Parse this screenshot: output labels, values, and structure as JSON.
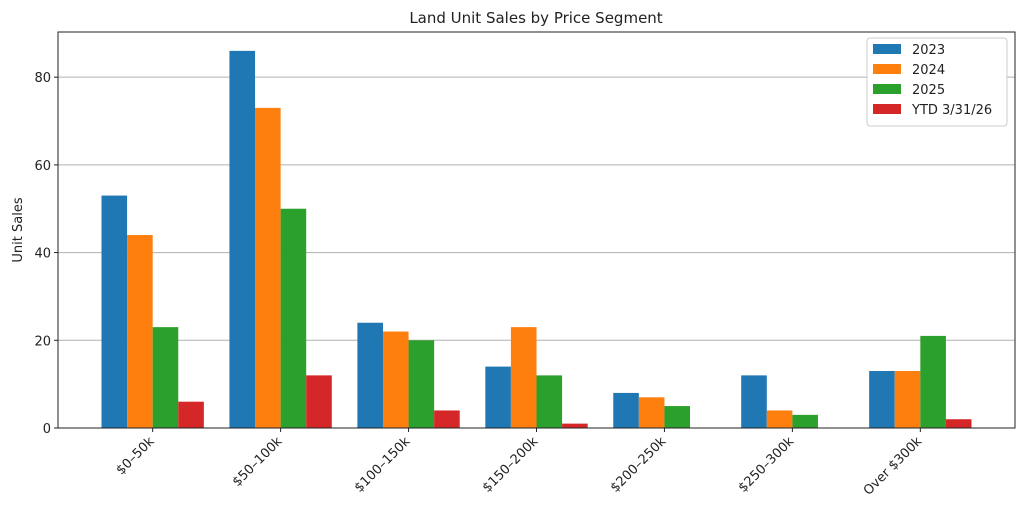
{
  "chart_data": {
    "type": "bar",
    "title": "Land Unit Sales by Price Segment",
    "xlabel": "",
    "ylabel": "Unit Sales",
    "ylim": [
      0,
      90.3
    ],
    "yticks": [
      0,
      20,
      40,
      60,
      80
    ],
    "grid": "y",
    "legend_position": "top-right",
    "categories": [
      "$0–50k",
      "$50–100k",
      "$100–150k",
      "$150–200k",
      "$200–250k",
      "$250–300k",
      "Over $300k"
    ],
    "series": [
      {
        "name": "2023",
        "color": "#1f77b4",
        "values": [
          53,
          86,
          24,
          14,
          8,
          12,
          13
        ]
      },
      {
        "name": "2024",
        "color": "#ff7f0e",
        "values": [
          44,
          73,
          22,
          23,
          7,
          4,
          13
        ]
      },
      {
        "name": "2025",
        "color": "#2ca02c",
        "values": [
          23,
          50,
          20,
          12,
          5,
          3,
          21
        ]
      },
      {
        "name": "YTD 3/31/26",
        "color": "#d62728",
        "values": [
          6,
          12,
          4,
          1,
          0,
          0,
          2
        ]
      }
    ]
  }
}
